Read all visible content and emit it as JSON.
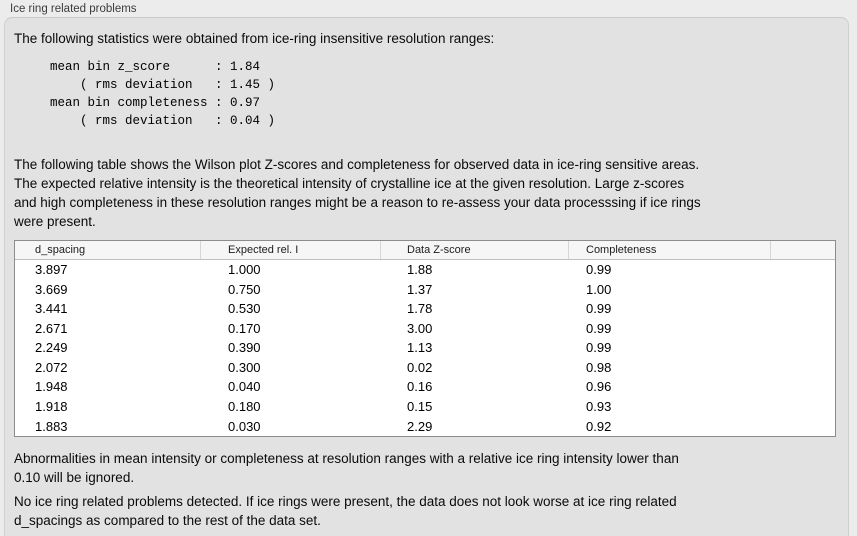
{
  "panel": {
    "title": "Ice ring related problems"
  },
  "intro": {
    "text": "The following statistics were obtained from ice-ring insensitive resolution ranges:"
  },
  "stats_block": {
    "text": "mean bin z_score      : 1.84\n    ( rms deviation   : 1.45 )\nmean bin completeness : 0.97\n    ( rms deviation   : 0.04 )",
    "values": {
      "mean_bin_z_score": "1.84",
      "z_score_rms_deviation": "1.45",
      "mean_bin_completeness": "0.97",
      "completeness_rms_deviation": "0.04"
    }
  },
  "table_intro": {
    "text": "The following table shows the Wilson plot Z-scores and completeness for observed data in ice-ring sensitive areas.\nThe expected relative intensity is the theoretical intensity of crystalline ice at the given resolution. Large z-scores\nand high completeness in these resolution ranges might be a reason to re-assess your data processsing if ice rings\nwere present."
  },
  "table": {
    "columns": [
      "d_spacing",
      "Expected rel. I",
      "Data Z-score",
      "Completeness",
      ""
    ],
    "rows": [
      [
        "3.897",
        "1.000",
        "1.88",
        "0.99"
      ],
      [
        "3.669",
        "0.750",
        "1.37",
        "1.00"
      ],
      [
        "3.441",
        "0.530",
        "1.78",
        "0.99"
      ],
      [
        "2.671",
        "0.170",
        "3.00",
        "0.99"
      ],
      [
        "2.249",
        "0.390",
        "1.13",
        "0.99"
      ],
      [
        "2.072",
        "0.300",
        "0.02",
        "0.98"
      ],
      [
        "1.948",
        "0.040",
        "0.16",
        "0.96"
      ],
      [
        "1.918",
        "0.180",
        "0.15",
        "0.93"
      ],
      [
        "1.883",
        "0.030",
        "2.29",
        "0.92"
      ]
    ]
  },
  "notes": {
    "ignore_note": "Abnormalities in mean intensity or completeness at resolution ranges with a relative ice ring intensity lower than\n0.10 will be ignored.",
    "conclusion": "No ice ring related problems detected. If ice rings were present, the data does not look worse at ice ring related\nd_spacings as compared to the rest of the data set."
  },
  "colors": {
    "page_bg": "#ececec",
    "groupbox_bg": "#e2e2e2",
    "groupbox_border": "#d0d0d0",
    "table_border": "#8c8c8c",
    "table_header_bg": "#f6f6f6",
    "text": "#0a0a0a"
  }
}
